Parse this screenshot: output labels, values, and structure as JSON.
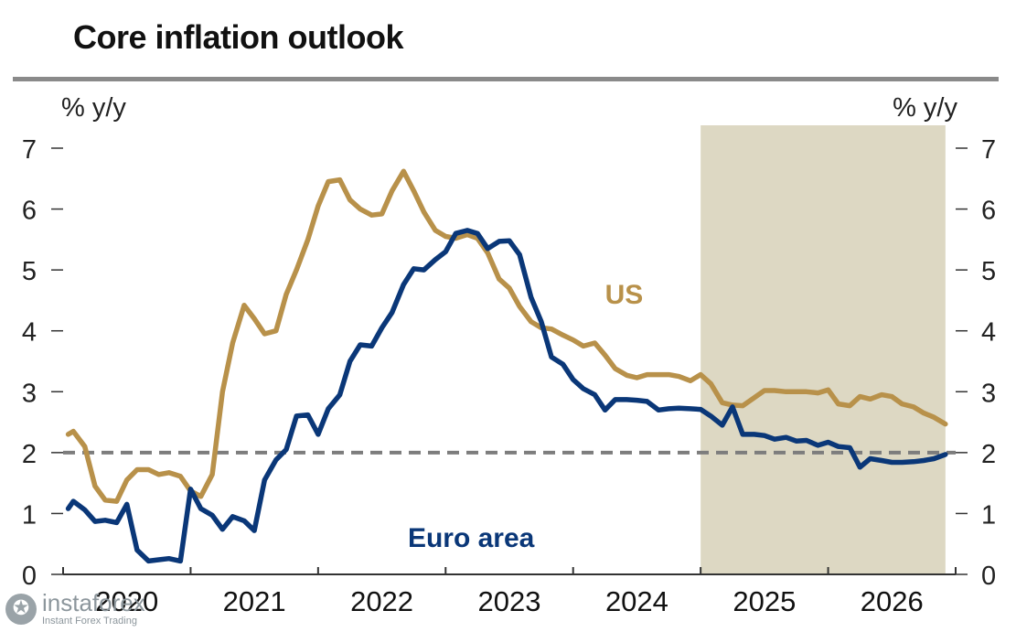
{
  "chart_data": {
    "type": "line",
    "title": "Core inflation outlook",
    "ylabel_left": "% y/y",
    "ylabel_right": "% y/y",
    "ylim": [
      0,
      7
    ],
    "yticks": [
      0,
      1,
      2,
      3,
      4,
      5,
      6,
      7
    ],
    "xlim": [
      2020.0,
      2027.0
    ],
    "x_tick_labels": [
      "2020",
      "2021",
      "2022",
      "2023",
      "2024",
      "2025",
      "2026"
    ],
    "forecast_shade": {
      "start": 2025.0,
      "end": 2026.92
    },
    "reference_line": {
      "y": 2,
      "style": "dashed"
    },
    "series": [
      {
        "name": "US",
        "label": "US",
        "color": "#b8914a",
        "x": [
          2020.04,
          2020.08,
          2020.17,
          2020.25,
          2020.33,
          2020.42,
          2020.5,
          2020.58,
          2020.67,
          2020.75,
          2020.83,
          2020.92,
          2021.0,
          2021.08,
          2021.17,
          2021.25,
          2021.33,
          2021.42,
          2021.5,
          2021.58,
          2021.67,
          2021.75,
          2021.83,
          2021.92,
          2022.0,
          2022.08,
          2022.17,
          2022.25,
          2022.33,
          2022.42,
          2022.5,
          2022.58,
          2022.67,
          2022.75,
          2022.83,
          2022.92,
          2023.0,
          2023.08,
          2023.17,
          2023.25,
          2023.33,
          2023.42,
          2023.5,
          2023.58,
          2023.67,
          2023.75,
          2023.83,
          2023.92,
          2024.0,
          2024.08,
          2024.17,
          2024.25,
          2024.33,
          2024.42,
          2024.5,
          2024.58,
          2024.67,
          2024.75,
          2024.83,
          2024.92,
          2025.0,
          2025.08,
          2025.17,
          2025.25,
          2025.33,
          2025.42,
          2025.5,
          2025.58,
          2025.67,
          2025.75,
          2025.83,
          2025.92,
          2026.0,
          2026.08,
          2026.17,
          2026.25,
          2026.33,
          2026.42,
          2026.5,
          2026.58,
          2026.67,
          2026.75,
          2026.83,
          2026.92
        ],
        "values": [
          2.3,
          2.35,
          2.1,
          1.45,
          1.22,
          1.2,
          1.55,
          1.72,
          1.72,
          1.64,
          1.67,
          1.61,
          1.37,
          1.28,
          1.64,
          3.0,
          3.8,
          4.42,
          4.2,
          3.95,
          4.0,
          4.6,
          5.0,
          5.5,
          6.05,
          6.45,
          6.48,
          6.15,
          6.0,
          5.9,
          5.92,
          6.3,
          6.62,
          6.3,
          5.95,
          5.65,
          5.55,
          5.52,
          5.58,
          5.52,
          5.28,
          4.85,
          4.7,
          4.4,
          4.15,
          4.05,
          4.03,
          3.93,
          3.85,
          3.75,
          3.8,
          3.6,
          3.38,
          3.27,
          3.23,
          3.28,
          3.28,
          3.28,
          3.25,
          3.18,
          3.28,
          3.13,
          2.82,
          2.78,
          2.77,
          2.9,
          3.02,
          3.02,
          3.0,
          3.0,
          3.0,
          2.98,
          3.03,
          2.8,
          2.77,
          2.92,
          2.88,
          2.95,
          2.92,
          2.8,
          2.75,
          2.65,
          2.58,
          2.47
        ]
      },
      {
        "name": "Euro area",
        "label": "Euro area",
        "color": "#0a3778",
        "x": [
          2020.04,
          2020.08,
          2020.17,
          2020.25,
          2020.33,
          2020.42,
          2020.5,
          2020.58,
          2020.67,
          2020.75,
          2020.83,
          2020.92,
          2021.0,
          2021.08,
          2021.17,
          2021.25,
          2021.33,
          2021.42,
          2021.5,
          2021.58,
          2021.67,
          2021.75,
          2021.83,
          2021.92,
          2022.0,
          2022.08,
          2022.17,
          2022.25,
          2022.33,
          2022.42,
          2022.5,
          2022.58,
          2022.67,
          2022.75,
          2022.83,
          2022.92,
          2023.0,
          2023.08,
          2023.17,
          2023.25,
          2023.33,
          2023.42,
          2023.5,
          2023.58,
          2023.67,
          2023.75,
          2023.83,
          2023.92,
          2024.0,
          2024.08,
          2024.17,
          2024.25,
          2024.33,
          2024.42,
          2024.5,
          2024.58,
          2024.67,
          2024.75,
          2024.83,
          2024.92,
          2025.0,
          2025.08,
          2025.17,
          2025.25,
          2025.33,
          2025.42,
          2025.5,
          2025.58,
          2025.67,
          2025.75,
          2025.83,
          2025.92,
          2026.0,
          2026.08,
          2026.17,
          2026.25,
          2026.33,
          2026.42,
          2026.5,
          2026.58,
          2026.67,
          2026.75,
          2026.83,
          2026.92
        ],
        "values": [
          1.08,
          1.2,
          1.06,
          0.87,
          0.89,
          0.85,
          1.15,
          0.4,
          0.22,
          0.24,
          0.26,
          0.22,
          1.4,
          1.08,
          0.97,
          0.74,
          0.95,
          0.88,
          0.72,
          1.55,
          1.88,
          2.05,
          2.6,
          2.62,
          2.3,
          2.72,
          2.95,
          3.5,
          3.77,
          3.75,
          4.05,
          4.3,
          4.76,
          5.02,
          5.0,
          5.17,
          5.3,
          5.6,
          5.65,
          5.6,
          5.35,
          5.47,
          5.48,
          5.25,
          4.55,
          4.15,
          3.57,
          3.45,
          3.2,
          3.05,
          2.95,
          2.7,
          2.87,
          2.87,
          2.86,
          2.84,
          2.7,
          2.72,
          2.73,
          2.72,
          2.71,
          2.6,
          2.45,
          2.75,
          2.3,
          2.3,
          2.28,
          2.22,
          2.25,
          2.19,
          2.2,
          2.12,
          2.17,
          2.1,
          2.08,
          1.76,
          1.9,
          1.87,
          1.84,
          1.84,
          1.85,
          1.87,
          1.9,
          1.97
        ]
      }
    ]
  }
}
